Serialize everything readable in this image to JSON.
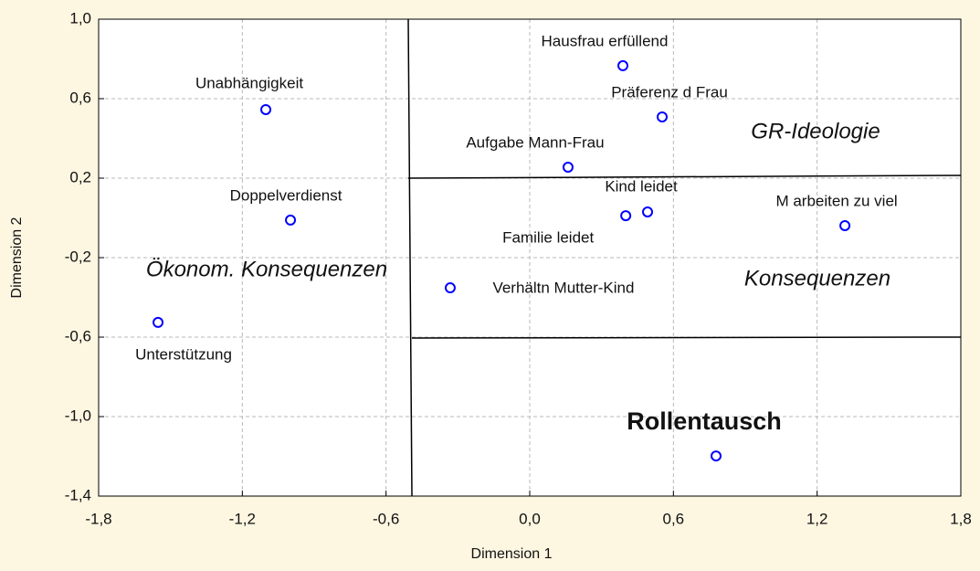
{
  "chart_data": {
    "type": "scatter",
    "x_label": "Dimension 1",
    "y_label": "Dimension 2",
    "xlim": [
      -1.8,
      1.8
    ],
    "ylim": [
      -1.4,
      1.0
    ],
    "xticks": [
      {
        "value": -1.8,
        "label": "-1,8"
      },
      {
        "value": -1.2,
        "label": "-1,2"
      },
      {
        "value": -0.6,
        "label": "-0,6"
      },
      {
        "value": 0.0,
        "label": "0,0"
      },
      {
        "value": 0.6,
        "label": "0,6"
      },
      {
        "value": 1.2,
        "label": "1,2"
      },
      {
        "value": 1.8,
        "label": "1,8"
      }
    ],
    "yticks": [
      {
        "value": -1.4,
        "label": "-1,4"
      },
      {
        "value": -1.0,
        "label": "-1,0"
      },
      {
        "value": -0.6,
        "label": "-0,6"
      },
      {
        "value": -0.2,
        "label": "-0,2"
      },
      {
        "value": 0.2,
        "label": "0,2"
      },
      {
        "value": 0.6,
        "label": "0,6"
      },
      {
        "value": 1.0,
        "label": "1,0"
      }
    ],
    "grid": true,
    "color": "#0000ff",
    "labels": [
      "Hausfrau erfüllend",
      "Präferenz d Frau",
      "Unabhängigkeit",
      "Aufgabe Mann-Frau",
      "Doppelverdienst",
      "Kind leidet",
      "Familie leidet",
      "M arbeiten zu viel",
      "Verhältn Mutter-Kind",
      "Unterstützung",
      null
    ],
    "x": [
      0.389,
      0.553,
      -1.102,
      0.16,
      -0.999,
      0.492,
      0.401,
      1.316,
      -0.332,
      -1.552,
      0.778
    ],
    "y": [
      0.766,
      0.508,
      0.545,
      0.255,
      -0.011,
      0.03,
      0.011,
      -0.039,
      -0.352,
      -0.526,
      -1.198
    ],
    "annotations": [
      "GR-Ideologie",
      "Konsequenzen",
      "Ökonom. Konsequenzen",
      "Rollentausch"
    ]
  }
}
